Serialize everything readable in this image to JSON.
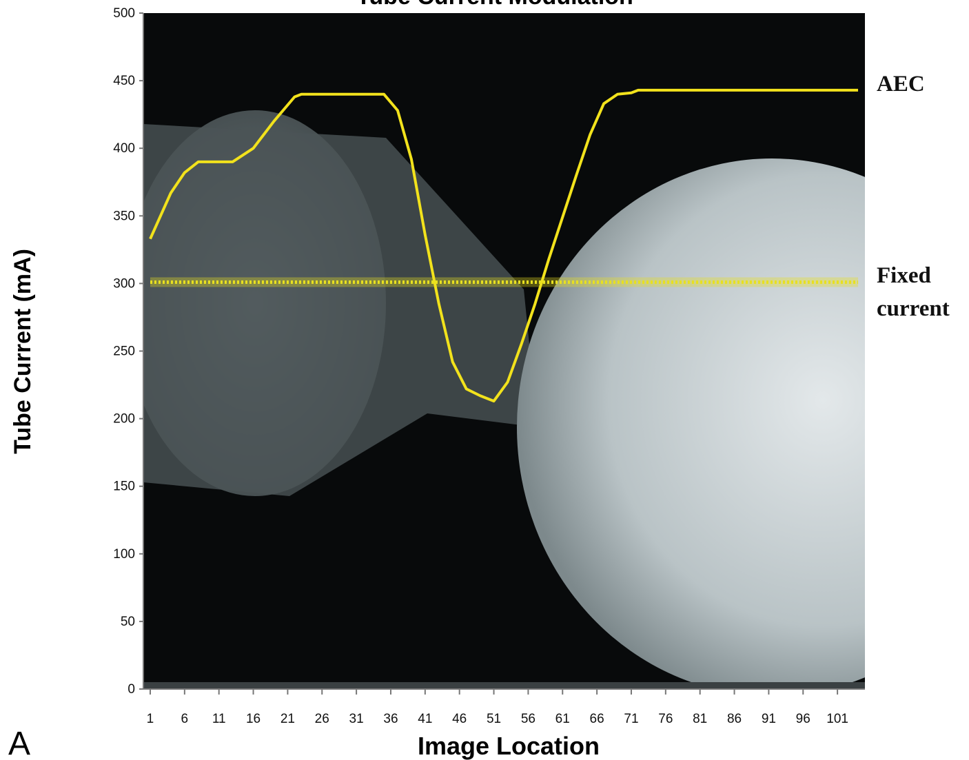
{
  "chart_data": {
    "type": "line",
    "title": "Tube Current Modulation",
    "panel_label": "A",
    "x_label": "Image Location",
    "y_label": "Tube Current (mA)",
    "xlim": [
      0,
      105
    ],
    "ylim": [
      0,
      500
    ],
    "xticks": [
      1,
      6,
      11,
      16,
      21,
      26,
      31,
      36,
      41,
      46,
      51,
      56,
      61,
      66,
      71,
      76,
      81,
      86,
      91,
      96,
      101
    ],
    "yticks": [
      0,
      50,
      100,
      150,
      200,
      250,
      300,
      350,
      400,
      450,
      500
    ],
    "series": [
      {
        "name": "AEC",
        "color": "#f2e21c",
        "style": "solid",
        "x": [
          1,
          4,
          6,
          8,
          13,
          16,
          19,
          22,
          23,
          35,
          37,
          39,
          41,
          43,
          45,
          47,
          49,
          51,
          53,
          55,
          57,
          59,
          61,
          63,
          65,
          67,
          69,
          71,
          72,
          104
        ],
        "values": [
          333,
          367,
          382,
          390,
          390,
          400,
          420,
          438,
          440,
          440,
          428,
          392,
          336,
          285,
          242,
          222,
          217,
          213,
          227,
          255,
          285,
          318,
          349,
          380,
          410,
          433,
          440,
          441,
          443,
          443
        ]
      },
      {
        "name": "Fixed current",
        "color": "#e8e020",
        "style": "dotted",
        "x": [
          1,
          104
        ],
        "values": [
          301,
          301
        ]
      }
    ]
  }
}
